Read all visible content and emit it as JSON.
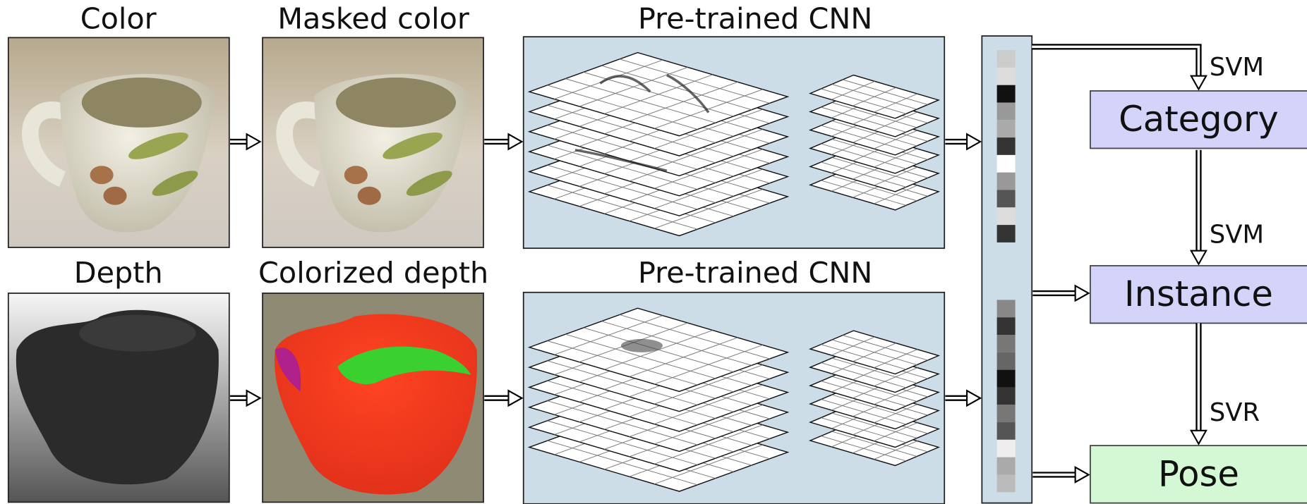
{
  "images": [
    {
      "label": "Color"
    },
    {
      "label": "Masked color"
    },
    {
      "label": "Depth"
    },
    {
      "label": "Colorized depth"
    }
  ],
  "cnn": [
    {
      "label": "Pre-trained CNN"
    },
    {
      "label": "Pre-trained CNN"
    }
  ],
  "outputs": [
    {
      "label": "Category"
    },
    {
      "label": "Instance"
    },
    {
      "label": "Pose"
    }
  ],
  "edges": [
    {
      "label": "SVM"
    },
    {
      "label": "SVM"
    },
    {
      "label": "SVR"
    }
  ]
}
